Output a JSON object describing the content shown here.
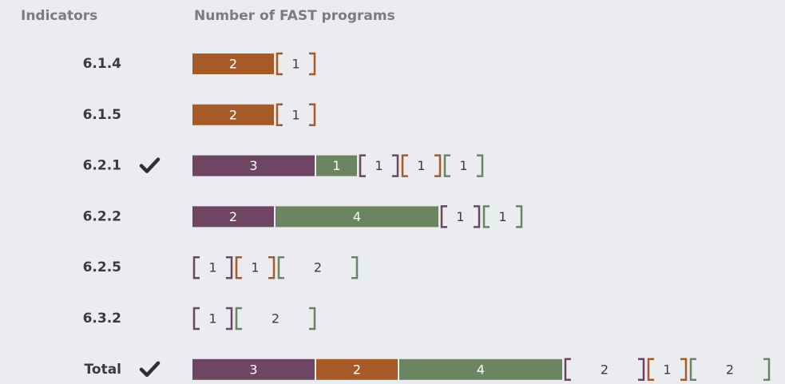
{
  "chart_data": {
    "type": "bar",
    "header_label": "Indicators",
    "title": "Number of FAST programs",
    "categories": [
      "6.1.4",
      "6.1.5",
      "6.2.1",
      "6.2.2",
      "6.2.5",
      "6.3.2",
      "Total"
    ],
    "checked": [
      false,
      false,
      true,
      false,
      false,
      false,
      true
    ],
    "series": [
      {
        "color": "#6e4563",
        "style": "solid",
        "values": [
          null,
          null,
          3,
          2,
          null,
          null,
          3
        ]
      },
      {
        "color": "#a65a27",
        "style": "solid",
        "values": [
          2,
          2,
          null,
          null,
          null,
          null,
          2
        ]
      },
      {
        "color": "#6b8461",
        "style": "solid",
        "values": [
          null,
          null,
          1,
          4,
          null,
          null,
          4
        ]
      },
      {
        "color": "#6e4563",
        "style": "bracket",
        "values": [
          null,
          null,
          1,
          1,
          1,
          1,
          2
        ]
      },
      {
        "color": "#a65a27",
        "style": "bracket",
        "values": [
          1,
          1,
          1,
          null,
          1,
          null,
          1
        ]
      },
      {
        "color": "#6b8461",
        "style": "bracket",
        "values": [
          null,
          null,
          1,
          1,
          2,
          2,
          2
        ]
      }
    ]
  }
}
